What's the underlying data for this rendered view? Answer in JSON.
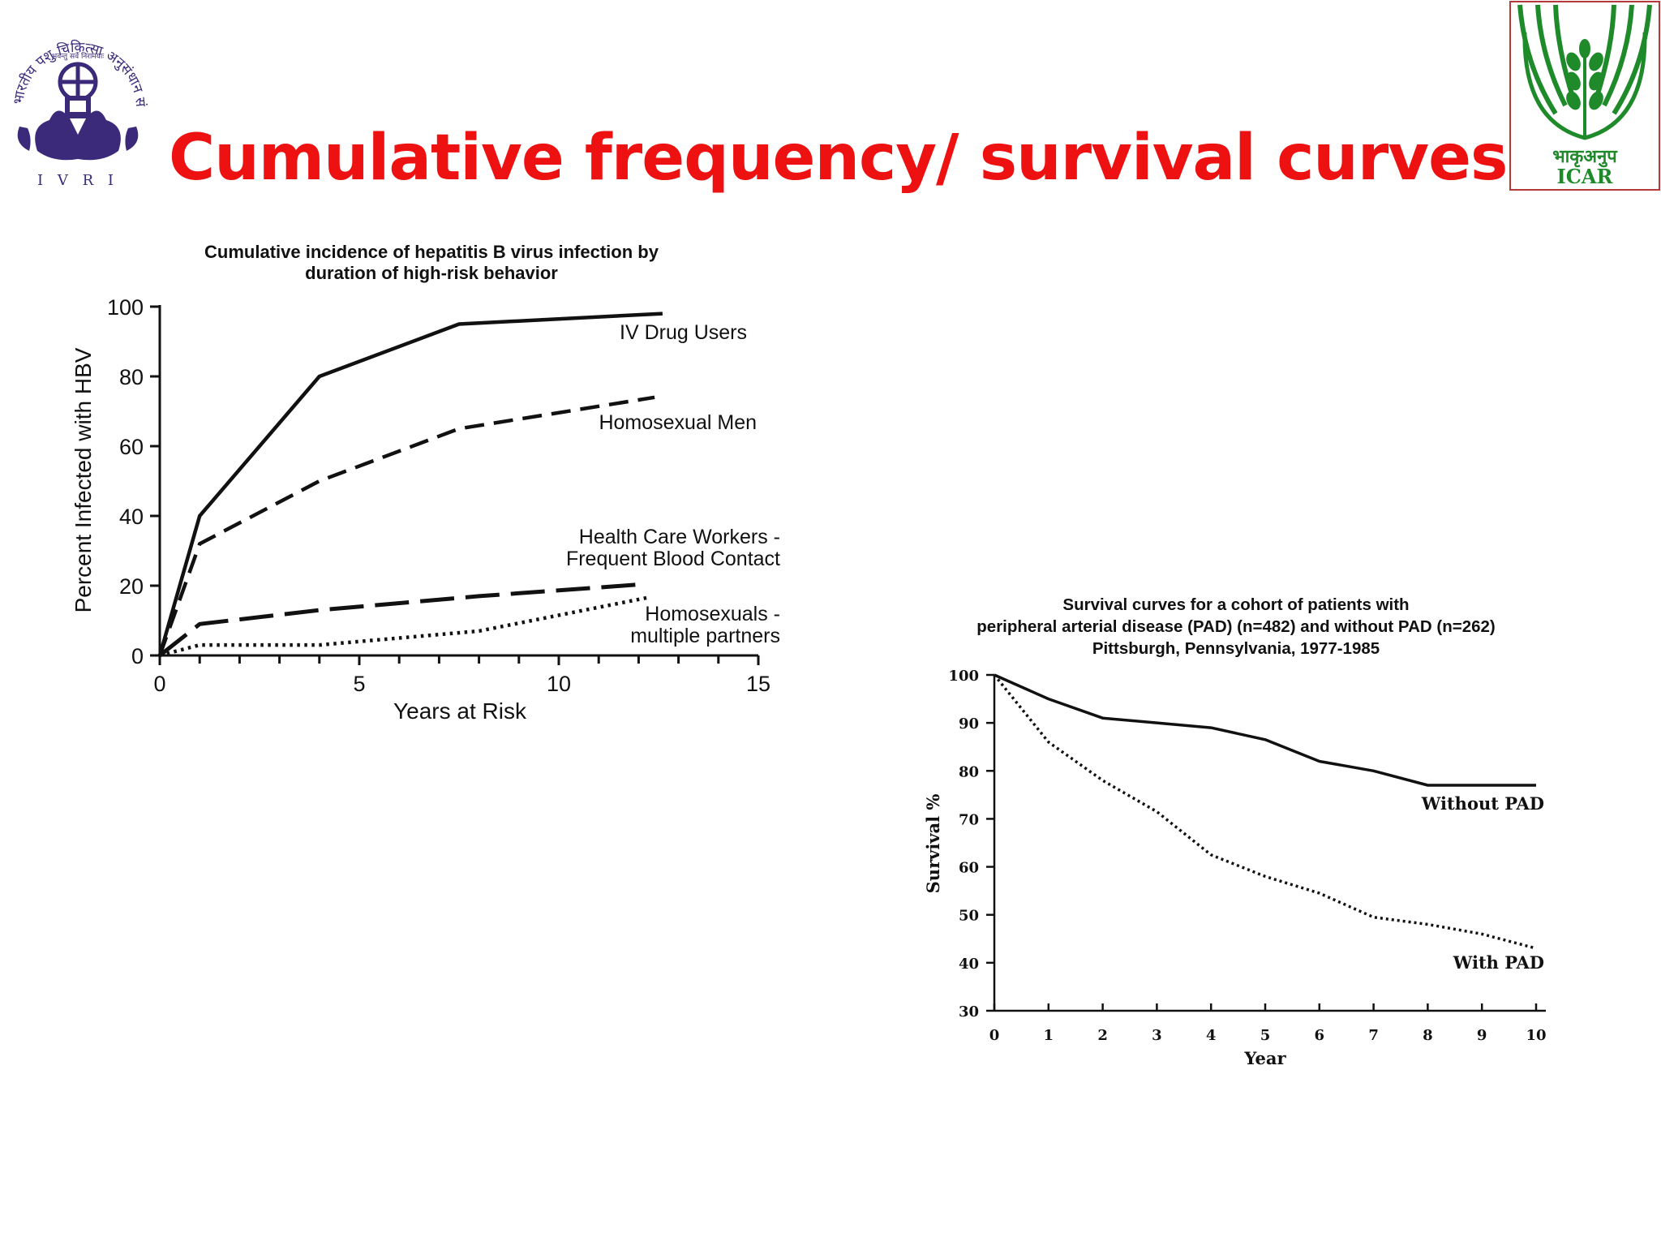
{
  "page": {
    "title": "Cumulative frequency/ survival curves",
    "title_color": "#ee1111"
  },
  "logos": {
    "left": {
      "icon": "ivri-emblem-icon",
      "arc_text": "भारतीय पशु चिकित्सा अनुसंधान संस्थान",
      "motto": "भवन्तु सर्वे निरामयाः",
      "abbrev": "I V R I",
      "color": "#3b2a7a"
    },
    "right": {
      "icon": "icar-wheat-icon",
      "devanagari": "भाकृअनुप",
      "abbrev": "ICAR",
      "color": "#1f8a2a"
    }
  },
  "chart_data": [
    {
      "type": "line",
      "title": "Cumulative incidence of hepatitis B virus infection by duration of high-risk behavior",
      "title_lines": [
        "Cumulative incidence of hepatitis B virus infection by",
        "duration of high-risk behavior"
      ],
      "xlabel": "Years at Risk",
      "ylabel": "Percent Infected with HBV",
      "xlim": [
        0,
        15
      ],
      "ylim": [
        0,
        100
      ],
      "xticks": [
        0,
        5,
        10,
        15
      ],
      "yticks": [
        0,
        20,
        40,
        60,
        80,
        100
      ],
      "grid": false,
      "series": [
        {
          "name": "IV Drug Users",
          "label_lines": [
            "IV Drug Users"
          ],
          "style": "solid",
          "x": [
            0,
            1,
            4,
            7.5,
            12.6
          ],
          "y": [
            0,
            40,
            80,
            95,
            98
          ]
        },
        {
          "name": "Homosexual Men",
          "label_lines": [
            "Homosexual Men"
          ],
          "style": "dashed",
          "x": [
            0,
            1,
            4,
            7.5,
            12.4
          ],
          "y": [
            0,
            32,
            50,
            65,
            74
          ]
        },
        {
          "name": "Health Care Workers - Frequent Blood Contact",
          "label_lines": [
            "Health Care Workers -",
            "Frequent Blood Contact"
          ],
          "style": "long-dash",
          "x": [
            0,
            1,
            4,
            8,
            12.2
          ],
          "y": [
            0,
            9,
            13,
            17,
            20.5
          ]
        },
        {
          "name": "Homosexuals - multiple partners",
          "label_lines": [
            "Homosexuals -",
            "multiple partners"
          ],
          "style": "dotted",
          "x": [
            0,
            1,
            4,
            8,
            12.2
          ],
          "y": [
            0,
            3,
            3,
            7,
            16.5
          ]
        }
      ]
    },
    {
      "type": "line",
      "title": "Survival curves for a cohort of patients with peripheral arterial disease (PAD) (n=482) and without PAD (n=262) Pittsburgh, Pennsylvania, 1977-1985",
      "title_lines": [
        "Survival curves for a cohort of patients with",
        "peripheral arterial disease (PAD) (n=482) and without PAD (n=262)",
        "Pittsburgh, Pennsylvania, 1977-1985"
      ],
      "xlabel": "Year",
      "ylabel": "Survival %",
      "xlim": [
        0,
        10
      ],
      "ylim": [
        30,
        100
      ],
      "xticks": [
        0,
        1,
        2,
        3,
        4,
        5,
        6,
        7,
        8,
        9,
        10
      ],
      "yticks": [
        30,
        40,
        50,
        60,
        70,
        80,
        90,
        100
      ],
      "grid": false,
      "series": [
        {
          "name": "Without PAD",
          "label_lines": [
            "Without PAD"
          ],
          "style": "solid",
          "x": [
            0,
            1,
            2,
            3,
            4,
            5,
            6,
            7,
            8,
            9,
            10
          ],
          "y": [
            100,
            95,
            91,
            90,
            89,
            86.5,
            82,
            80,
            77,
            77,
            77
          ]
        },
        {
          "name": "With PAD",
          "label_lines": [
            "With PAD"
          ],
          "style": "dotted",
          "x": [
            0,
            1,
            2,
            3,
            4,
            5,
            6,
            7,
            8,
            9,
            10
          ],
          "y": [
            100,
            86,
            78,
            71.5,
            62.5,
            58,
            54.5,
            49.5,
            48,
            46,
            43
          ]
        }
      ]
    }
  ]
}
